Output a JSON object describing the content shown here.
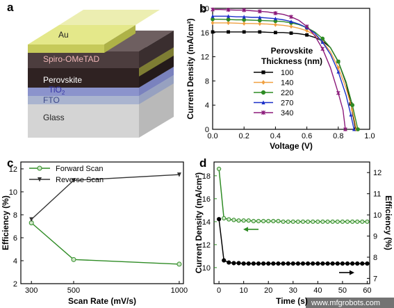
{
  "panel_labels": {
    "a": "a",
    "b": "b",
    "c": "c",
    "d": "d"
  },
  "device": {
    "layers": [
      {
        "name": "Au",
        "color": "#d3d66a"
      },
      {
        "name": "Spiro-OMeTAD",
        "color": "#4e3f40"
      },
      {
        "name": "Perovskite",
        "color": "#2c2020"
      },
      {
        "name": "TiO",
        "sub": "2",
        "color": "#8f95c6"
      },
      {
        "name": "FTO",
        "color": "#b2bdd0"
      },
      {
        "name": "Glass",
        "color": "#e2e2e2"
      }
    ]
  },
  "watermark": "www.mfgrobots.com",
  "chart_data": [
    {
      "panel": "b",
      "type": "line",
      "xlabel": "Voltage (V)",
      "ylabel": "Current Density (mA/cm²)",
      "xlim": [
        0,
        1.0
      ],
      "ylim": [
        0,
        20
      ],
      "xticks": [
        "0.0",
        "0.2",
        "0.4",
        "0.6",
        "0.8",
        "1.0"
      ],
      "yticks": [
        "0",
        "4",
        "8",
        "12",
        "16",
        "20"
      ],
      "legend_title": [
        "Perovskite",
        "Thickness (nm)"
      ],
      "legend_position": "right",
      "series": [
        {
          "name": "100",
          "color": "#000000",
          "marker": "square",
          "points": [
            [
              0,
              16.1
            ],
            [
              0.05,
              16.1
            ],
            [
              0.1,
              16.1
            ],
            [
              0.15,
              16.1
            ],
            [
              0.2,
              16.1
            ],
            [
              0.25,
              16.1
            ],
            [
              0.3,
              16.1
            ],
            [
              0.35,
              16.05
            ],
            [
              0.4,
              16.0
            ],
            [
              0.45,
              16.0
            ],
            [
              0.5,
              15.9
            ],
            [
              0.55,
              15.8
            ],
            [
              0.6,
              15.6
            ],
            [
              0.65,
              15.2
            ],
            [
              0.7,
              14.6
            ],
            [
              0.75,
              13.5
            ],
            [
              0.8,
              11.2
            ],
            [
              0.85,
              7.6
            ],
            [
              0.88,
              4.2
            ],
            [
              0.91,
              0
            ]
          ]
        },
        {
          "name": "140",
          "color": "#f0a040",
          "marker": "diamond",
          "points": [
            [
              0,
              17.6
            ],
            [
              0.05,
              17.6
            ],
            [
              0.1,
              17.6
            ],
            [
              0.15,
              17.55
            ],
            [
              0.2,
              17.5
            ],
            [
              0.25,
              17.5
            ],
            [
              0.3,
              17.45
            ],
            [
              0.35,
              17.4
            ],
            [
              0.4,
              17.3
            ],
            [
              0.45,
              17.2
            ],
            [
              0.5,
              17.0
            ],
            [
              0.55,
              16.7
            ],
            [
              0.6,
              16.3
            ],
            [
              0.65,
              15.6
            ],
            [
              0.7,
              14.5
            ],
            [
              0.75,
              12.8
            ],
            [
              0.8,
              10.2
            ],
            [
              0.85,
              6.8
            ],
            [
              0.89,
              3.2
            ],
            [
              0.915,
              0
            ]
          ]
        },
        {
          "name": "220",
          "color": "#2e8b24",
          "marker": "circle",
          "points": [
            [
              0,
              18.2
            ],
            [
              0.05,
              18.2
            ],
            [
              0.1,
              18.15
            ],
            [
              0.15,
              18.1
            ],
            [
              0.2,
              18.1
            ],
            [
              0.25,
              18.05
            ],
            [
              0.3,
              18.0
            ],
            [
              0.35,
              17.95
            ],
            [
              0.4,
              17.9
            ],
            [
              0.45,
              17.8
            ],
            [
              0.5,
              17.6
            ],
            [
              0.55,
              17.3
            ],
            [
              0.6,
              16.8
            ],
            [
              0.65,
              16.1
            ],
            [
              0.7,
              15.0
            ],
            [
              0.75,
              13.5
            ],
            [
              0.8,
              11.2
            ],
            [
              0.85,
              7.8
            ],
            [
              0.89,
              4.0
            ],
            [
              0.925,
              0
            ]
          ]
        },
        {
          "name": "270",
          "color": "#1a2fc8",
          "marker": "triangle",
          "points": [
            [
              0,
              18.7
            ],
            [
              0.05,
              18.7
            ],
            [
              0.1,
              18.7
            ],
            [
              0.15,
              18.6
            ],
            [
              0.2,
              18.6
            ],
            [
              0.25,
              18.5
            ],
            [
              0.3,
              18.5
            ],
            [
              0.35,
              18.4
            ],
            [
              0.4,
              18.3
            ],
            [
              0.45,
              18.1
            ],
            [
              0.5,
              17.8
            ],
            [
              0.55,
              17.4
            ],
            [
              0.6,
              16.8
            ],
            [
              0.65,
              15.9
            ],
            [
              0.7,
              14.4
            ],
            [
              0.75,
              12.4
            ],
            [
              0.8,
              9.5
            ],
            [
              0.85,
              5.6
            ],
            [
              0.88,
              2.4
            ],
            [
              0.9,
              0
            ]
          ]
        },
        {
          "name": "340",
          "color": "#8b1a7a",
          "marker": "star",
          "points": [
            [
              0,
              19.8
            ],
            [
              0.05,
              19.8
            ],
            [
              0.1,
              19.75
            ],
            [
              0.15,
              19.7
            ],
            [
              0.2,
              19.7
            ],
            [
              0.25,
              19.6
            ],
            [
              0.3,
              19.5
            ],
            [
              0.35,
              19.4
            ],
            [
              0.4,
              19.2
            ],
            [
              0.45,
              19.0
            ],
            [
              0.5,
              18.6
            ],
            [
              0.55,
              18.0
            ],
            [
              0.6,
              17.0
            ],
            [
              0.65,
              15.5
            ],
            [
              0.7,
              13.3
            ],
            [
              0.75,
              10.2
            ],
            [
              0.8,
              6.0
            ],
            [
              0.83,
              3.2
            ],
            [
              0.845,
              0
            ]
          ]
        }
      ]
    },
    {
      "panel": "c",
      "type": "line",
      "xlabel": "Scan Rate (mV/s)",
      "ylabel": "Efficiency (%)",
      "xlim": [
        250,
        1020
      ],
      "ylim": [
        2,
        12.6
      ],
      "xticks": [
        "300",
        "500",
        "1000"
      ],
      "yticks": [
        "2",
        "4",
        "6",
        "8",
        "10",
        "12"
      ],
      "legend_position": "top",
      "series": [
        {
          "name": "Forward Scan",
          "color": "#2e8b24",
          "marker": "circle",
          "points": [
            [
              300,
              7.3
            ],
            [
              500,
              4.1
            ],
            [
              1000,
              3.7
            ]
          ]
        },
        {
          "name": "Reverse Scan",
          "color": "#333333",
          "marker": "triangle-down",
          "points": [
            [
              300,
              7.6
            ],
            [
              500,
              11.0
            ],
            [
              1000,
              11.5
            ]
          ]
        }
      ]
    },
    {
      "panel": "d",
      "type": "line",
      "xlabel": "Time (s)",
      "ylabel_left": "Current Density (mA/cm²)",
      "ylabel_right": "Efficiency (%)",
      "xlim": [
        -2,
        61
      ],
      "ylim_left": [
        8.6,
        19.2
      ],
      "ylim_right": [
        6.75,
        12.5
      ],
      "xticks": [
        "0",
        "10",
        "20",
        "30",
        "40",
        "50",
        "60"
      ],
      "yticks_left": [
        "10",
        "12",
        "14",
        "16",
        "18"
      ],
      "yticks_right": [
        "7",
        "8",
        "9",
        "10",
        "11",
        "12"
      ],
      "series": [
        {
          "name": "Current Density",
          "axis": "left",
          "color": "#2e8b24",
          "marker": "circle",
          "points": [
            [
              0,
              18.6
            ],
            [
              2,
              14.3
            ],
            [
              4,
              14.2
            ],
            [
              6,
              14.15
            ],
            [
              8,
              14.1
            ],
            [
              10,
              14.1
            ],
            [
              12,
              14.1
            ],
            [
              14,
              14.05
            ],
            [
              16,
              14.05
            ],
            [
              18,
              14.05
            ],
            [
              20,
              14.05
            ],
            [
              22,
              14.05
            ],
            [
              24,
              14.05
            ],
            [
              26,
              14.0
            ],
            [
              28,
              14.0
            ],
            [
              30,
              14.0
            ],
            [
              32,
              14.0
            ],
            [
              34,
              14.0
            ],
            [
              36,
              14.0
            ],
            [
              38,
              14.0
            ],
            [
              40,
              14.0
            ],
            [
              42,
              14.0
            ],
            [
              44,
              14.0
            ],
            [
              46,
              14.0
            ],
            [
              48,
              14.0
            ],
            [
              50,
              14.0
            ],
            [
              52,
              14.0
            ],
            [
              54,
              14.0
            ],
            [
              56,
              14.0
            ],
            [
              58,
              14.0
            ],
            [
              60,
              14.0
            ]
          ]
        },
        {
          "name": "Efficiency",
          "axis": "right",
          "color": "#000000",
          "marker": "circle",
          "points": [
            [
              0,
              9.8
            ],
            [
              2,
              7.85
            ],
            [
              4,
              7.75
            ],
            [
              6,
              7.72
            ],
            [
              8,
              7.72
            ],
            [
              10,
              7.7
            ],
            [
              12,
              7.7
            ],
            [
              14,
              7.7
            ],
            [
              16,
              7.7
            ],
            [
              18,
              7.7
            ],
            [
              20,
              7.7
            ],
            [
              22,
              7.7
            ],
            [
              24,
              7.7
            ],
            [
              26,
              7.7
            ],
            [
              28,
              7.7
            ],
            [
              30,
              7.7
            ],
            [
              32,
              7.7
            ],
            [
              34,
              7.7
            ],
            [
              36,
              7.7
            ],
            [
              38,
              7.7
            ],
            [
              40,
              7.7
            ],
            [
              42,
              7.7
            ],
            [
              44,
              7.7
            ],
            [
              46,
              7.7
            ],
            [
              48,
              7.7
            ],
            [
              50,
              7.7
            ],
            [
              52,
              7.7
            ],
            [
              54,
              7.7
            ],
            [
              56,
              7.7
            ],
            [
              58,
              7.7
            ],
            [
              60,
              7.7
            ]
          ]
        }
      ],
      "arrows": [
        {
          "series": "Current Density",
          "points_to": "left"
        },
        {
          "series": "Efficiency",
          "points_to": "right"
        }
      ]
    }
  ]
}
